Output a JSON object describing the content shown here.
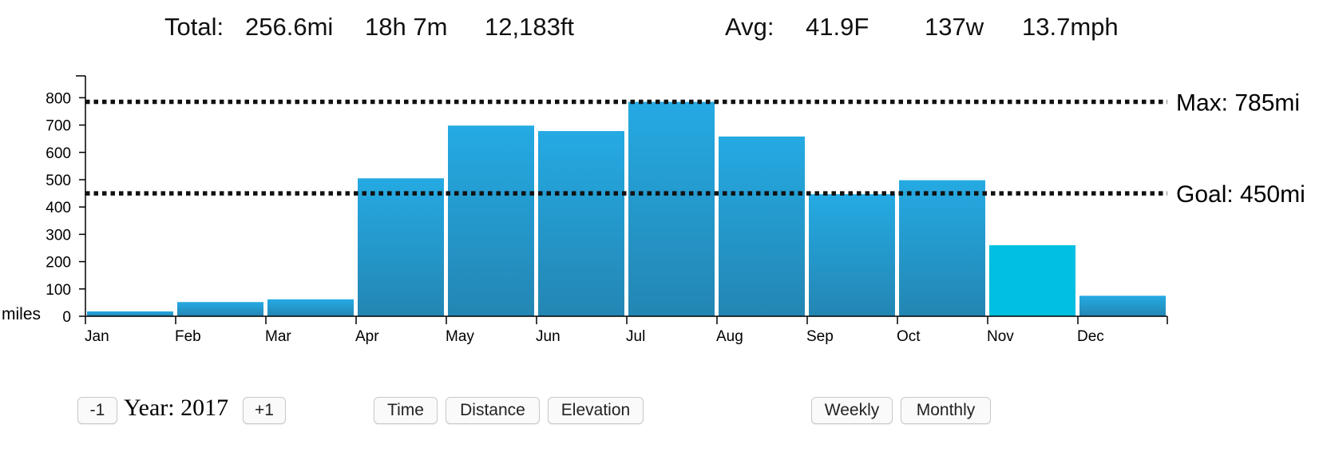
{
  "totals": {
    "label": "Total:",
    "distance": "256.6mi",
    "time": "18h 7m",
    "elevation": "12,183ft"
  },
  "averages": {
    "label": "Avg:",
    "temperature": "41.9F",
    "power": "137w",
    "speed": "13.7mph"
  },
  "chart_data": {
    "type": "bar",
    "categories": [
      "Jan",
      "Feb",
      "Mar",
      "Apr",
      "May",
      "Jun",
      "Jul",
      "Aug",
      "Sep",
      "Oct",
      "Nov",
      "Dec"
    ],
    "values": [
      18,
      52,
      62,
      505,
      698,
      678,
      785,
      658,
      447,
      498,
      260,
      75
    ],
    "highlight_index": 10,
    "ylabel": "miles",
    "ylim": [
      0,
      880
    ],
    "yticks": [
      0,
      100,
      200,
      300,
      400,
      500,
      600,
      700,
      800
    ],
    "grid": false,
    "reference_lines": [
      {
        "label": "Max: 785mi",
        "value": 785
      },
      {
        "label": "Goal: 450mi",
        "value": 450
      }
    ],
    "colors": {
      "bar_top": "#25aae3",
      "bar_bottom": "#2386b3",
      "bar_highlight": "#00bfe0",
      "reference_line": "#111111"
    }
  },
  "controls": {
    "prev_year_label": "-1",
    "year_text": "Year: 2017",
    "next_year_label": "+1",
    "metric_buttons": [
      "Time",
      "Distance",
      "Elevation"
    ],
    "period_buttons": [
      "Weekly",
      "Monthly"
    ]
  }
}
